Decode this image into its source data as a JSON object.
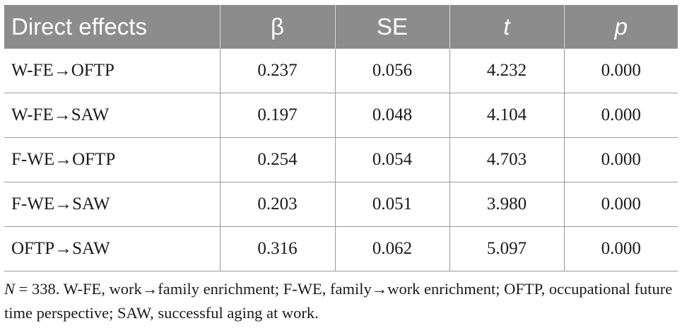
{
  "table": {
    "headers": [
      "Direct effects",
      "β",
      "SE",
      "t",
      "p"
    ],
    "rows": [
      [
        "W-FE→OFTP",
        "0.237",
        "0.056",
        "4.232",
        "0.000"
      ],
      [
        "W-FE→SAW",
        "0.197",
        "0.048",
        "4.104",
        "0.000"
      ],
      [
        "F-WE→OFTP",
        "0.254",
        "0.054",
        "4.703",
        "0.000"
      ],
      [
        "F-WE→SAW",
        "0.203",
        "0.051",
        "3.980",
        "0.000"
      ],
      [
        "OFTP→SAW",
        "0.316",
        "0.062",
        "5.097",
        "0.000"
      ]
    ]
  },
  "note": {
    "n_symbol": "N",
    "text": " = 338. W-FE, work→family enrichment; F-WE, family→work enrichment; OFTP, occupational future time perspective; SAW, successful aging at work."
  }
}
